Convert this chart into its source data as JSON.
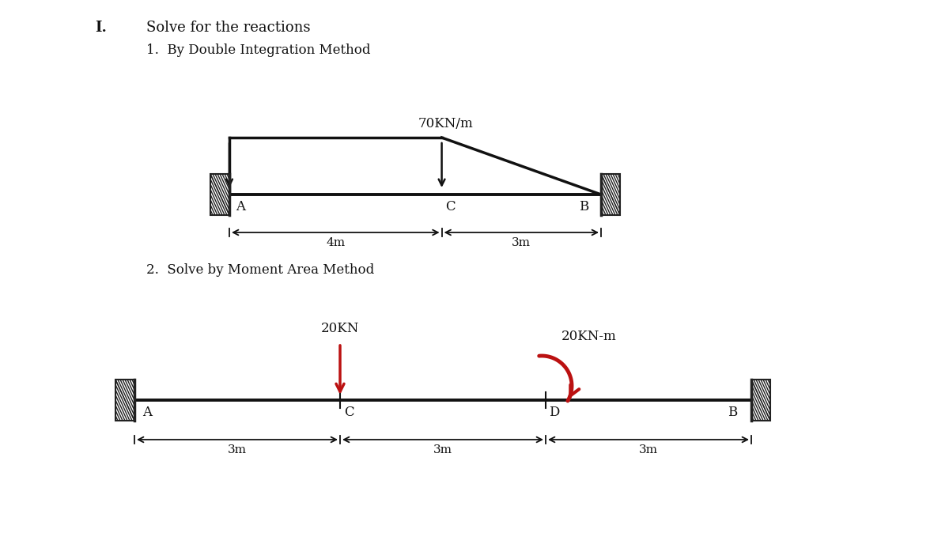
{
  "title1": "I.",
  "subtitle1": "Solve for the reactions",
  "subtitle2": "1.  By Double Integration Method",
  "subtitle3": "2.  Solve by Moment Area Method",
  "load_label1": "70KN/m",
  "load_label2": "20KN",
  "moment_label": "20KN-m",
  "dim1a": "4m",
  "dim1b": "3m",
  "dim2a": "3m",
  "dim2b": "3m",
  "dim2c": "3m",
  "label_A1": "A",
  "label_B1": "B",
  "label_C1": "C",
  "label_A2": "A",
  "label_B2": "B",
  "label_C2": "C",
  "label_D2": "D",
  "hatch_color": "#222222",
  "beam_color": "#111111",
  "arrow_color": "#111111",
  "moment_color": "#bb1111",
  "force_color": "#bb1111",
  "font_color": "#111111",
  "font_size_header": 13,
  "font_size_label": 12,
  "font_size_dim": 11
}
